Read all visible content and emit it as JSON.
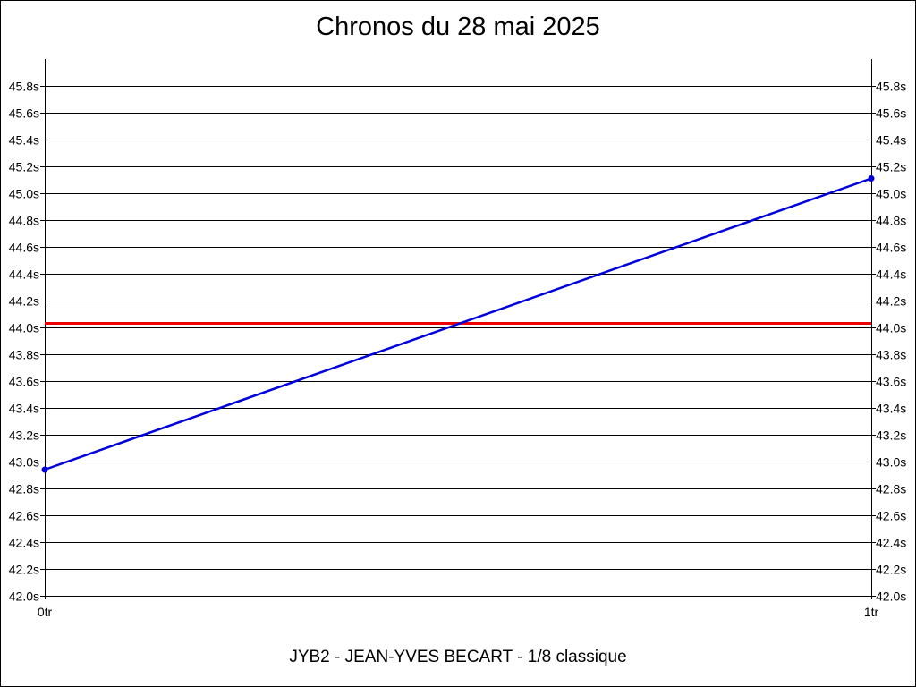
{
  "chart_data": {
    "type": "line",
    "title": "Chronos du 28 mai 2025",
    "subtitle": "JYB2 - JEAN-YVES BECART - 1/8 classique",
    "x": [
      0,
      1
    ],
    "x_tick_labels": [
      "0tr",
      "1tr"
    ],
    "y_ticks": [
      42.0,
      42.2,
      42.4,
      42.6,
      42.8,
      43.0,
      43.2,
      43.4,
      43.6,
      43.8,
      44.0,
      44.2,
      44.4,
      44.6,
      44.8,
      45.0,
      45.2,
      45.4,
      45.6,
      45.8
    ],
    "y_tick_labels": [
      "42.0s",
      "42.2s",
      "42.4s",
      "42.6s",
      "42.8s",
      "43.0s",
      "43.2s",
      "43.4s",
      "43.6s",
      "43.8s",
      "44.0s",
      "44.2s",
      "44.4s",
      "44.6s",
      "44.8s",
      "45.0s",
      "45.2s",
      "45.4s",
      "45.6s",
      "45.8s"
    ],
    "ylim": [
      42.0,
      46.0
    ],
    "xlim": [
      0,
      1
    ],
    "grid": true,
    "series": [
      {
        "values": [
          42.94,
          45.11
        ],
        "color": "#0000dd"
      }
    ],
    "reference_line": {
      "value": 44.03,
      "color": "#ee0000"
    }
  }
}
